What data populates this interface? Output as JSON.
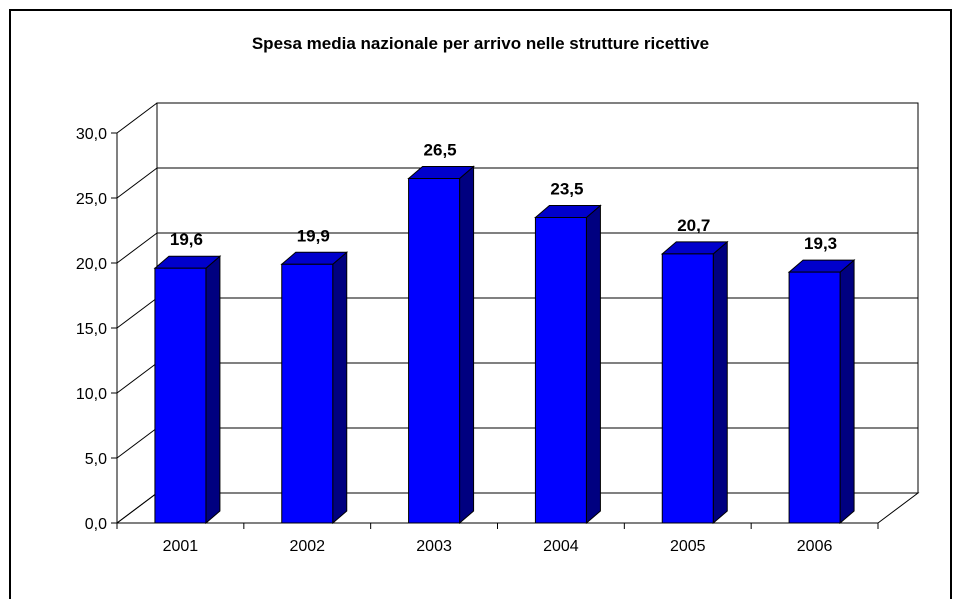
{
  "chart_data": {
    "type": "bar",
    "title": "Spesa media nazionale per arrivo nelle strutture ricettive",
    "xlabel": "",
    "ylabel": "",
    "categories": [
      "2001",
      "2002",
      "2003",
      "2004",
      "2005",
      "2006"
    ],
    "series": [
      {
        "values": [
          19.6,
          19.9,
          26.5,
          23.5,
          20.7,
          19.3
        ],
        "data_labels": [
          "19,6",
          "19,9",
          "26,5",
          "23,5",
          "20,7",
          "19,3"
        ]
      }
    ],
    "ylim": [
      0,
      30
    ],
    "yticks": [
      0,
      5,
      10,
      15,
      20,
      25,
      30
    ],
    "ytick_labels": [
      "0,0",
      "5,0",
      "10,0",
      "15,0",
      "20,0",
      "25,0",
      "30,0"
    ],
    "grid": true,
    "style": "3d-column",
    "colors": {
      "bar_front": "#0000FF",
      "bar_top": "#0000CC",
      "bar_side": "#000080",
      "grid": "#000000"
    }
  }
}
